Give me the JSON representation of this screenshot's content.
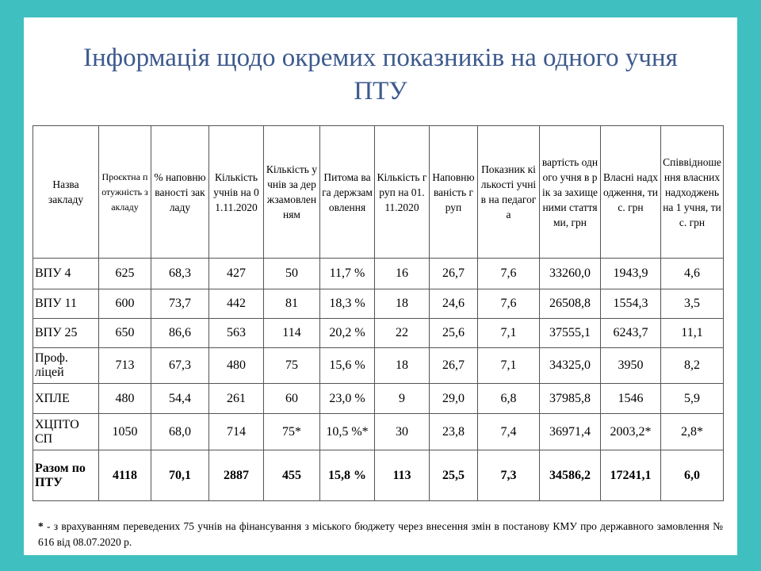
{
  "title": "Інформація щодо окремих показників на одного учня ПТУ",
  "table": {
    "header": [
      "Назва закладу",
      "Проєктна потужність закладу",
      "% наповнюваності закладу",
      "Кількість учнів на 01.11.2020",
      "Кількість учнів за держзамовленням",
      "Питома вага держзамовлення",
      "Кількість груп на 01.11.2020",
      "Наповнюваність груп",
      "Показник кількості учнів на педагога",
      "вартість одного учня в рік за захищеними статтями, грн",
      "Власні надходження, тис. грн",
      "Співвідношення власних надходжень на 1 учня, тис. грн"
    ],
    "rows": [
      [
        "ВПУ 4",
        "625",
        "68,3",
        "427",
        "50",
        "11,7 %",
        "16",
        "26,7",
        "7,6",
        "33260,0",
        "1943,9",
        "4,6"
      ],
      [
        "ВПУ 11",
        "600",
        "73,7",
        "442",
        "81",
        "18,3 %",
        "18",
        "24,6",
        "7,6",
        "26508,8",
        "1554,3",
        "3,5"
      ],
      [
        "ВПУ 25",
        "650",
        "86,6",
        "563",
        "114",
        "20,2 %",
        "22",
        "25,6",
        "7,1",
        "37555,1",
        "6243,7",
        "11,1"
      ],
      [
        "Проф. ліцей",
        "713",
        "67,3",
        "480",
        "75",
        "15,6 %",
        "18",
        "26,7",
        "7,1",
        "34325,0",
        "3950",
        "8,2"
      ],
      [
        "ХПЛЕ",
        "480",
        "54,4",
        "261",
        "60",
        "23,0 %",
        "9",
        "29,0",
        "6,8",
        "37985,8",
        "1546",
        "5,9"
      ],
      [
        "ХЦПТО СП",
        "1050",
        "68,0",
        "714",
        "75*",
        "10,5 %*",
        "30",
        "23,8",
        "7,4",
        "36971,4",
        "2003,2*",
        "2,8*"
      ],
      [
        "Разом по ПТУ",
        "4118",
        "70,1",
        "2887",
        "455",
        "15,8 %",
        "113",
        "25,5",
        "7,3",
        "34586,2",
        "17241,1",
        "6,0"
      ]
    ]
  },
  "footnote": {
    "marker": "*",
    "text": " - з врахуванням переведених 75 учнів на фінансування з міського бюджету через внесення змін в постанову КМУ про державного замовлення № 616 від 08.07.2020 р."
  }
}
